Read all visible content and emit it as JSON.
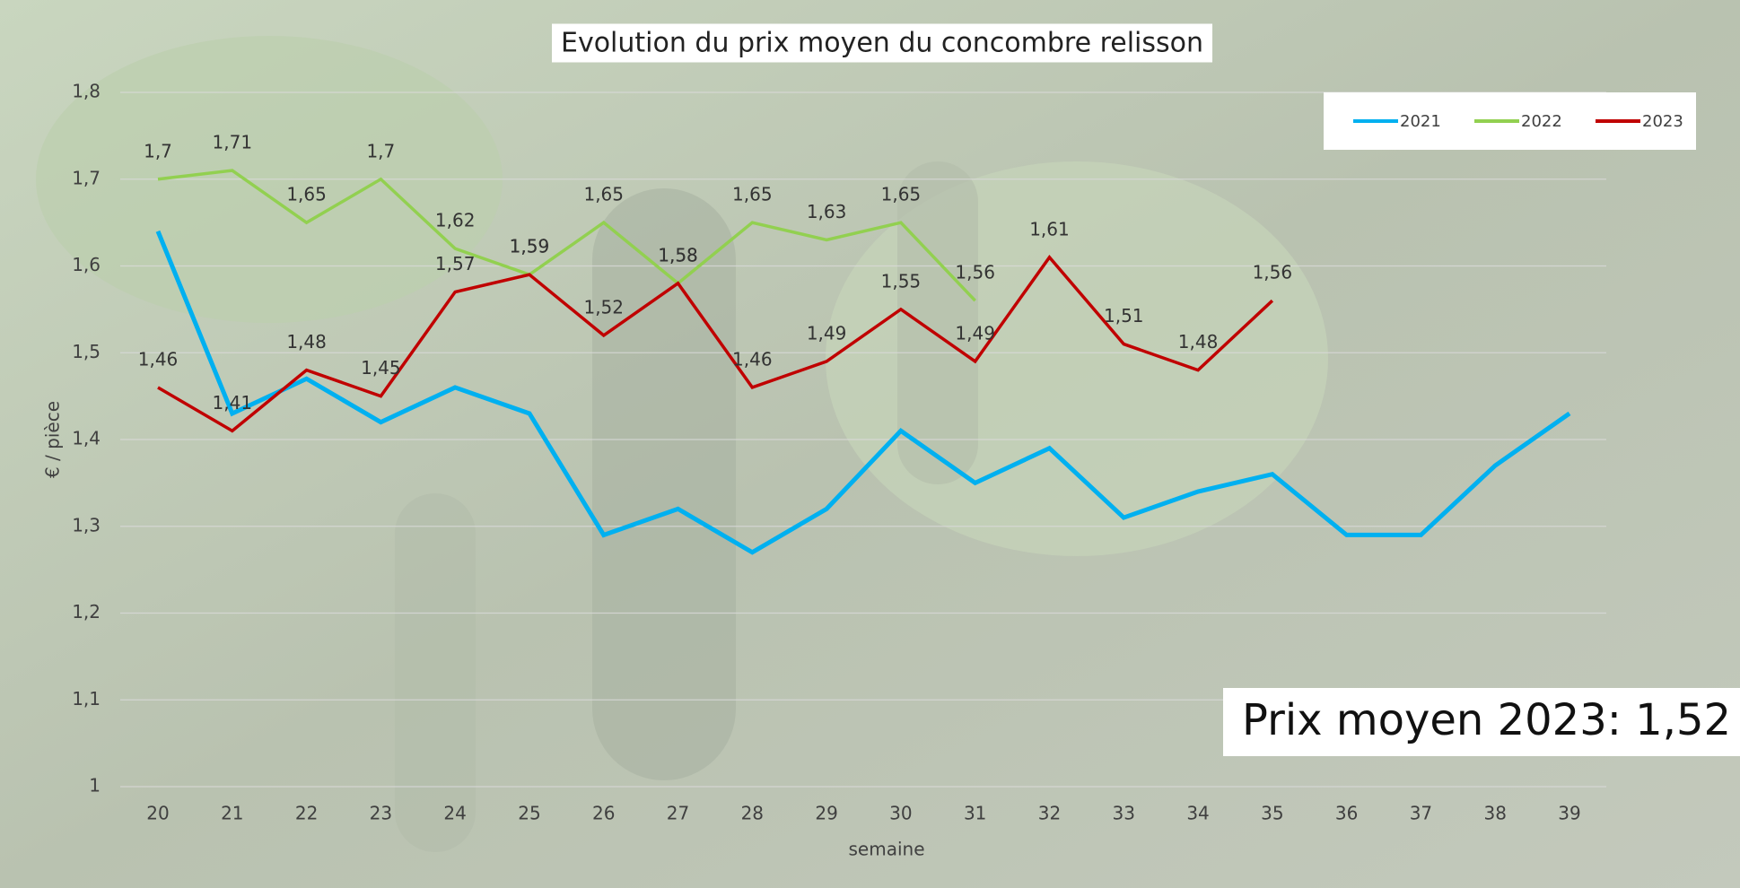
{
  "chart_data": {
    "type": "line",
    "title": "Evolution du prix moyen du concombre relisson",
    "x_label": "semaine",
    "y_label": "€ / pièce",
    "annotation": "Prix moyen 2023: 1,52",
    "categories": [
      "20",
      "21",
      "22",
      "23",
      "24",
      "25",
      "26",
      "27",
      "28",
      "29",
      "30",
      "31",
      "32",
      "33",
      "34",
      "35",
      "36",
      "37",
      "38",
      "39"
    ],
    "ylim": [
      1,
      1.8
    ],
    "yticks": [
      1,
      {
        "value": 1.1,
        "label": "1,1"
      },
      {
        "value": 1.2,
        "label": "1,2"
      },
      {
        "value": 1.3,
        "label": "1,3"
      },
      {
        "value": 1.4,
        "label": "1,4"
      },
      {
        "value": 1.5,
        "label": "1,5"
      },
      {
        "value": 1.6,
        "label": "1,6"
      },
      {
        "value": 1.7,
        "label": "1,7"
      },
      {
        "value": 1.8,
        "label": "1,8"
      }
    ],
    "grid": true,
    "legend": "top-right",
    "series": [
      {
        "name": "2021",
        "color": "#00b0f0",
        "values": [
          1.64,
          1.43,
          1.47,
          1.42,
          1.46,
          1.43,
          1.29,
          1.32,
          1.27,
          1.32,
          1.41,
          1.35,
          1.39,
          1.31,
          1.34,
          1.36,
          1.29,
          1.29,
          1.37,
          1.43
        ]
      },
      {
        "name": "2022",
        "color": "#92d050",
        "values": [
          1.7,
          1.71,
          1.65,
          1.7,
          1.62,
          1.59,
          1.65,
          1.58,
          1.65,
          1.63,
          1.65,
          1.56,
          null,
          null,
          null,
          null,
          null,
          null,
          null,
          null
        ],
        "value_labels": [
          "1,7",
          "1,71",
          "1,65",
          "1,7",
          "1,62",
          "1,59",
          "1,65",
          "1,58",
          "1,65",
          "1,63",
          "1,65",
          "1,56",
          null,
          null,
          null,
          null,
          null,
          null,
          null,
          null
        ]
      },
      {
        "name": "2023",
        "color": "#c00000",
        "values": [
          1.46,
          1.41,
          1.48,
          1.45,
          1.57,
          1.59,
          1.52,
          1.58,
          1.46,
          1.49,
          1.55,
          1.49,
          1.61,
          1.51,
          1.48,
          1.56,
          null,
          null,
          null,
          null
        ],
        "value_labels": [
          "1,46",
          "1,41",
          "1,48",
          "1,45",
          "1,57",
          "1,59",
          "1,52",
          "1,58",
          "1,46",
          "1,49",
          "1,55",
          "1,49",
          "1,61",
          "1,51",
          "1,48",
          "1,56",
          null,
          null,
          null,
          null
        ]
      }
    ]
  }
}
